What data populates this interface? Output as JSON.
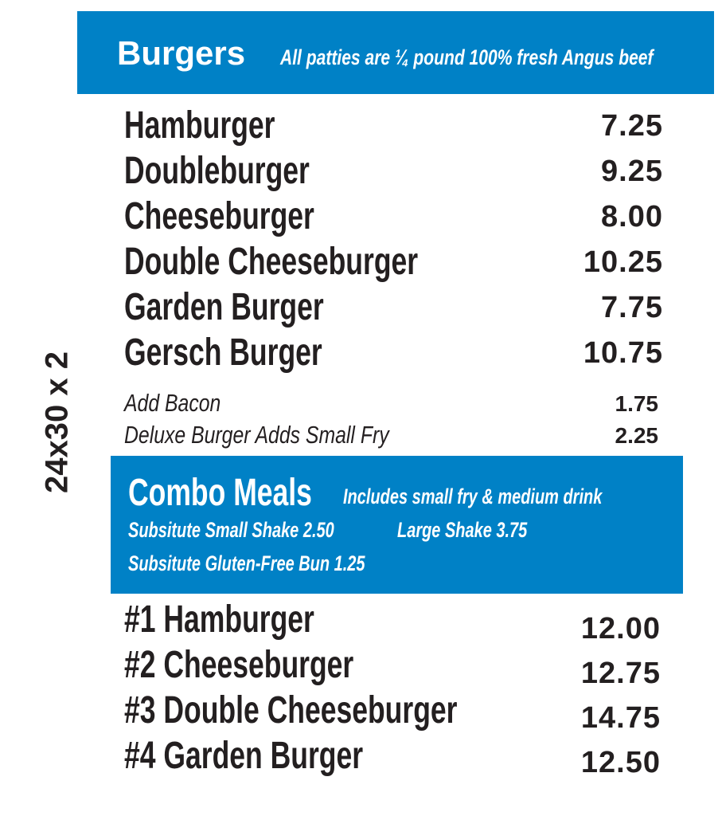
{
  "side_label": "24x30 x 2",
  "colors": {
    "band": "#0081c6",
    "text": "#231f20"
  },
  "burgers": {
    "title": "Burgers",
    "subtitle": "All patties are ¼ pound 100% fresh Angus beef",
    "items": [
      {
        "name": "Hamburger",
        "price": "7.25"
      },
      {
        "name": "Doubleburger",
        "price": "9.25"
      },
      {
        "name": "Cheeseburger",
        "price": "8.00"
      },
      {
        "name": "Double Cheeseburger",
        "price": "10.25"
      },
      {
        "name": "Garden Burger",
        "price": "7.75"
      },
      {
        "name": "Gersch Burger",
        "price": "10.75"
      }
    ],
    "addons": [
      {
        "name": "Add Bacon",
        "price": "1.75"
      },
      {
        "name": "Deluxe Burger Adds Small Fry",
        "price": "2.25"
      }
    ]
  },
  "combos": {
    "title": "Combo Meals",
    "subtitle": "Includes small fry & medium drink",
    "note1a": "Subsitute Small Shake 2.50",
    "note1b": "Large Shake 3.75",
    "note2": "Subsitute Gluten-Free Bun 1.25",
    "items": [
      {
        "name": "#1 Hamburger",
        "price": "12.00"
      },
      {
        "name": "#2 Cheeseburger",
        "price": "12.75"
      },
      {
        "name": "#3 Double Cheeseburger",
        "price": "14.75"
      },
      {
        "name": "#4 Garden Burger",
        "price": "12.50"
      }
    ]
  }
}
